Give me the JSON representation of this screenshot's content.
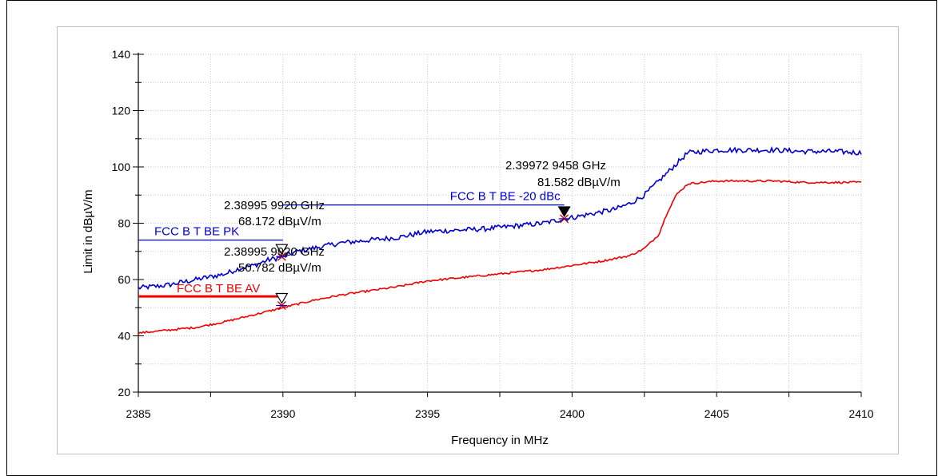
{
  "chart_data": {
    "type": "line",
    "xlabel": "Frequency in MHz",
    "ylabel": "Limit in dBµV/m",
    "xlim": [
      2385,
      2410
    ],
    "ylim": [
      20,
      140
    ],
    "xticks": [
      "2385",
      "2390",
      "2395",
      "2400",
      "2405",
      "2410"
    ],
    "yticks": [
      "20",
      "40",
      "60",
      "80",
      "100",
      "120",
      "140"
    ],
    "grid": true,
    "colors": {
      "peak": "#0000cc",
      "average": "#ee0000",
      "text": "#000000"
    },
    "series": [
      {
        "name": "",
        "color": "#0000cc",
        "x": [
          2385,
          2386,
          2387,
          2387.5,
          2388,
          2388.5,
          2389,
          2389.5,
          2390,
          2390.5,
          2391,
          2391.5,
          2392,
          2393,
          2394,
          2395,
          2396,
          2397,
          2398,
          2399,
          2399.7,
          2400,
          2400.5,
          2401,
          2401.5,
          2402,
          2402.5,
          2403,
          2403.5,
          2404,
          2405,
          2406,
          2407,
          2408,
          2409,
          2410
        ],
        "y": [
          57,
          58,
          60,
          61,
          62,
          64,
          65,
          67,
          68,
          70,
          71,
          72,
          73,
          74,
          75,
          77,
          77.5,
          78,
          79,
          80,
          81.5,
          82,
          83,
          84,
          85,
          87,
          90,
          95,
          100,
          105,
          106,
          106,
          106,
          105.5,
          105.5,
          105
        ]
      },
      {
        "name": "",
        "color": "#ee0000",
        "x": [
          2385,
          2386,
          2387,
          2388,
          2389,
          2390,
          2391,
          2392,
          2393,
          2394,
          2395,
          2396,
          2397,
          2398,
          2399,
          2400,
          2401,
          2402,
          2402.5,
          2403,
          2403.3,
          2403.6,
          2404,
          2405,
          2406,
          2407,
          2408,
          2409,
          2410
        ],
        "y": [
          41,
          42,
          43,
          45,
          47.5,
          50,
          52.5,
          54.5,
          56,
          57.5,
          59.5,
          60.5,
          61.5,
          62.5,
          63.5,
          65,
          66.5,
          68.5,
          71,
          76,
          84,
          90,
          94,
          95,
          95,
          95,
          94.5,
          94.5,
          94.5
        ]
      }
    ],
    "limit_lines": [
      {
        "label": "FCC B T BE PK",
        "y": 74,
        "x_range": [
          2385,
          2390
        ],
        "color": "#0000cc"
      },
      {
        "label": "FCC B T BE AV",
        "y": 54,
        "x_range": [
          2385,
          2390
        ],
        "color": "#ee0000"
      },
      {
        "label": "FCC B T BE -20 dBc",
        "y": 86.5,
        "x_range": [
          2390,
          2399.73
        ],
        "color": "#0000cc"
      }
    ],
    "markers": [
      {
        "x": 2389.96,
        "y": 68.172,
        "freq_label": "2.38995 9920 GHz",
        "level_label": "68.172 dBµV/m"
      },
      {
        "x": 2389.96,
        "y": 50.782,
        "freq_label": "2.38995 9920 GHz",
        "level_label": "50.782 dBµV/m"
      },
      {
        "x": 2399.73,
        "y": 81.582,
        "freq_label": "2.39972 9458 GHz",
        "level_label": "81.582 dBµV/m"
      }
    ]
  }
}
